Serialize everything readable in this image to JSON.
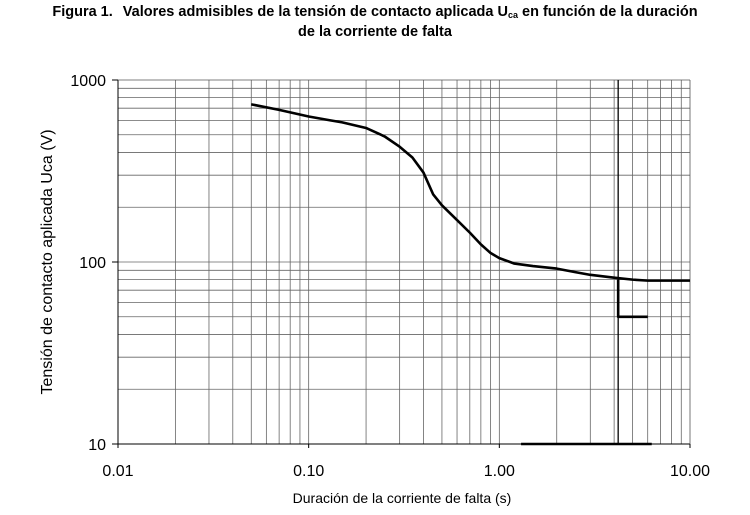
{
  "title": {
    "label": "Figura 1.",
    "text_before_subscript": "Valores admisibles de la tensión de contacto aplicada U",
    "subscript": "ca",
    "text_after_subscript": " en función de la duración",
    "line2": "de la corriente de falta"
  },
  "chart_data": {
    "type": "line",
    "xlabel": "Duración de la corriente de falta (s)",
    "ylabel": "Tensión de contacto aplicada  Uca (V)",
    "x_scale": "log",
    "y_scale": "log",
    "xlim": [
      0.01,
      10
    ],
    "ylim": [
      10,
      1000
    ],
    "x_ticks": [
      {
        "value": 0.01,
        "label": "0.01"
      },
      {
        "value": 0.1,
        "label": "0.10"
      },
      {
        "value": 1,
        "label": "1.00"
      },
      {
        "value": 10,
        "label": "10.00"
      }
    ],
    "y_ticks": [
      {
        "value": 10,
        "label": "10"
      },
      {
        "value": 100,
        "label": "100"
      },
      {
        "value": 1000,
        "label": "1000"
      }
    ],
    "grid": true,
    "series": [
      {
        "points": [
          [
            0.05,
            735
          ],
          [
            0.07,
            685
          ],
          [
            0.1,
            630
          ],
          [
            0.13,
            600
          ],
          [
            0.15,
            585
          ],
          [
            0.2,
            545
          ],
          [
            0.25,
            490
          ],
          [
            0.3,
            430
          ],
          [
            0.35,
            375
          ],
          [
            0.4,
            310
          ],
          [
            0.45,
            235
          ],
          [
            0.5,
            205
          ],
          [
            0.6,
            170
          ],
          [
            0.7,
            145
          ],
          [
            0.8,
            125
          ],
          [
            0.9,
            112
          ],
          [
            1.0,
            105
          ],
          [
            1.2,
            98
          ],
          [
            1.5,
            95
          ],
          [
            2.0,
            92
          ],
          [
            2.5,
            88
          ],
          [
            3.0,
            85
          ],
          [
            4.0,
            82
          ],
          [
            5.0,
            80
          ],
          [
            6.0,
            79
          ],
          [
            10.0,
            79
          ]
        ]
      },
      {
        "points": [
          [
            4.2,
            80
          ],
          [
            4.2,
            50
          ],
          [
            6.0,
            50
          ]
        ]
      },
      {
        "points": [
          [
            1.3,
            10
          ],
          [
            6.3,
            10
          ]
        ]
      }
    ],
    "reference_lines": [
      {
        "orientation": "vertical",
        "x": 4.2,
        "y_from": 10,
        "y_to": 1000
      }
    ]
  }
}
